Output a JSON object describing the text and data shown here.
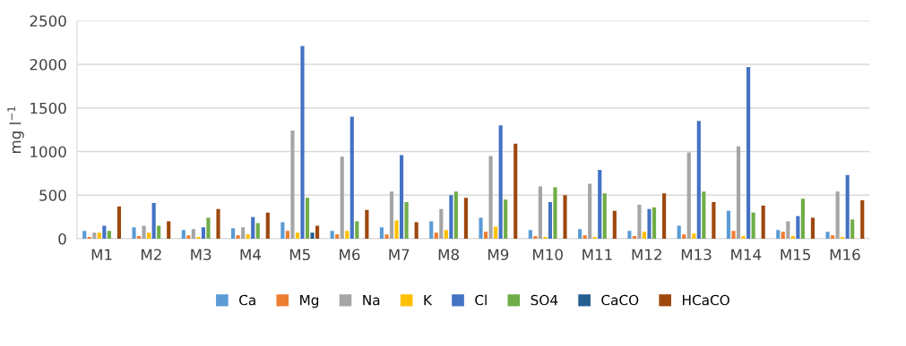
{
  "chart_data": {
    "type": "bar",
    "ylabel": "mg l$^{−1}$",
    "categories": [
      "M1",
      "M2",
      "M3",
      "M4",
      "M5",
      "M6",
      "M7",
      "M8",
      "M9",
      "M10",
      "M11",
      "M12",
      "M13",
      "M14",
      "M15",
      "M16"
    ],
    "series": [
      {
        "name": "Ca",
        "color": "#5b9bd5",
        "values": [
          90,
          130,
          100,
          120,
          190,
          90,
          130,
          200,
          240,
          100,
          110,
          90,
          150,
          320,
          100,
          80
        ]
      },
      {
        "name": "Mg",
        "color": "#ed7d31",
        "values": [
          20,
          30,
          40,
          40,
          90,
          50,
          50,
          70,
          80,
          30,
          40,
          30,
          50,
          90,
          80,
          40
        ]
      },
      {
        "name": "Na",
        "color": "#a5a5a5",
        "values": [
          70,
          150,
          110,
          130,
          1240,
          940,
          540,
          340,
          950,
          600,
          630,
          390,
          990,
          1060,
          200,
          540
        ]
      },
      {
        "name": "K",
        "color": "#ffc000",
        "values": [
          70,
          70,
          20,
          50,
          70,
          90,
          210,
          100,
          140,
          20,
          20,
          80,
          60,
          30,
          30,
          20
        ]
      },
      {
        "name": "Cl",
        "color": "#4472c4",
        "values": [
          150,
          410,
          130,
          250,
          2210,
          1400,
          960,
          500,
          1300,
          420,
          790,
          340,
          1350,
          1970,
          260,
          730
        ]
      },
      {
        "name": "SO4",
        "color": "#70ad47",
        "values": [
          90,
          150,
          240,
          180,
          470,
          200,
          420,
          540,
          450,
          590,
          520,
          360,
          540,
          300,
          460,
          220
        ]
      },
      {
        "name": "CaCO",
        "color": "#255e91",
        "values": [
          0,
          0,
          0,
          0,
          70,
          0,
          0,
          0,
          0,
          0,
          0,
          0,
          0,
          0,
          0,
          0
        ]
      },
      {
        "name": "HCaCO",
        "color": "#9e480e",
        "values": [
          370,
          200,
          340,
          300,
          150,
          330,
          190,
          470,
          1090,
          500,
          320,
          520,
          420,
          380,
          240,
          440
        ]
      }
    ],
    "ylim": [
      0,
      2500
    ],
    "yticks": [
      0,
      500,
      1000,
      1500,
      2000,
      2500
    ],
    "grid": "y",
    "legend": "bottom"
  }
}
